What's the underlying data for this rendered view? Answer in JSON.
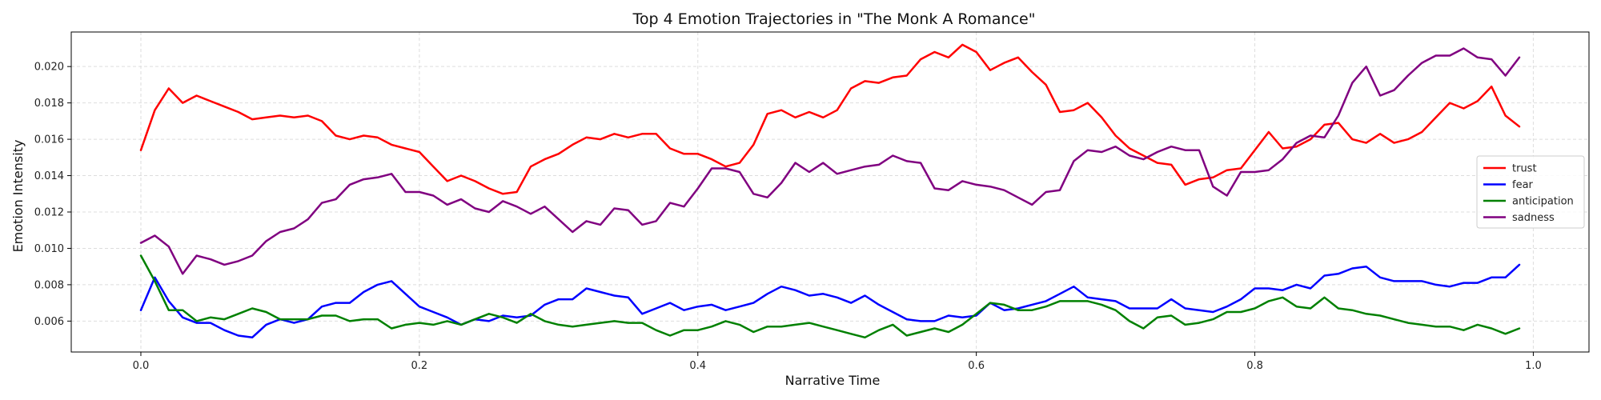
{
  "chart_data": {
    "type": "line",
    "title": "Top 4 Emotion Trajectories in \"The Monk A Romance\"",
    "xlabel": "Narrative Time",
    "ylabel": "Emotion Intensity",
    "xlim": [
      -0.05,
      1.04
    ],
    "ylim": [
      0.0043,
      0.0219
    ],
    "xticks": [
      0.0,
      0.2,
      0.4,
      0.6,
      0.8,
      1.0
    ],
    "xtick_labels": [
      "0.0",
      "0.2",
      "0.4",
      "0.6",
      "0.8",
      "1.0"
    ],
    "yticks": [
      0.006,
      0.008,
      0.01,
      0.012,
      0.014,
      0.016,
      0.018,
      0.02
    ],
    "ytick_labels": [
      "0.006",
      "0.008",
      "0.010",
      "0.012",
      "0.014",
      "0.016",
      "0.018",
      "0.020"
    ],
    "grid": true,
    "legend_position": "center-right",
    "x": [
      0.0,
      0.01,
      0.02,
      0.03,
      0.04,
      0.05,
      0.06,
      0.07,
      0.08,
      0.09,
      0.1,
      0.11,
      0.12,
      0.13,
      0.14,
      0.15,
      0.16,
      0.17,
      0.18,
      0.19,
      0.2,
      0.21,
      0.22,
      0.23,
      0.24,
      0.25,
      0.26,
      0.27,
      0.28,
      0.29,
      0.3,
      0.31,
      0.32,
      0.33,
      0.34,
      0.35,
      0.36,
      0.37,
      0.38,
      0.39,
      0.4,
      0.41,
      0.42,
      0.43,
      0.44,
      0.45,
      0.46,
      0.47,
      0.48,
      0.49,
      0.5,
      0.51,
      0.52,
      0.53,
      0.54,
      0.55,
      0.56,
      0.57,
      0.58,
      0.59,
      0.6,
      0.61,
      0.62,
      0.63,
      0.64,
      0.65,
      0.66,
      0.67,
      0.68,
      0.69,
      0.7,
      0.71,
      0.72,
      0.73,
      0.74,
      0.75,
      0.76,
      0.77,
      0.78,
      0.79,
      0.8,
      0.81,
      0.82,
      0.83,
      0.84,
      0.85,
      0.86,
      0.87,
      0.88,
      0.89,
      0.9,
      0.91,
      0.92,
      0.93,
      0.94,
      0.95,
      0.96,
      0.97,
      0.98,
      0.99
    ],
    "series": [
      {
        "name": "trust",
        "color": "#ff0000",
        "values": [
          0.0154,
          0.0176,
          0.0188,
          0.018,
          0.0184,
          0.0181,
          0.0178,
          0.0175,
          0.0171,
          0.0172,
          0.0173,
          0.0172,
          0.0173,
          0.017,
          0.0162,
          0.016,
          0.0162,
          0.0161,
          0.0157,
          0.0155,
          0.0153,
          0.0145,
          0.0137,
          0.014,
          0.0137,
          0.0133,
          0.013,
          0.0131,
          0.0145,
          0.0149,
          0.0152,
          0.0157,
          0.0161,
          0.016,
          0.0163,
          0.0161,
          0.0163,
          0.0163,
          0.0155,
          0.0152,
          0.0152,
          0.0149,
          0.0145,
          0.0147,
          0.0157,
          0.0174,
          0.0176,
          0.0172,
          0.0175,
          0.0172,
          0.0176,
          0.0188,
          0.0192,
          0.0191,
          0.0194,
          0.0195,
          0.0204,
          0.0208,
          0.0205,
          0.0212,
          0.0208,
          0.0198,
          0.0202,
          0.0205,
          0.0197,
          0.019,
          0.0175,
          0.0176,
          0.018,
          0.0172,
          0.0162,
          0.0155,
          0.0151,
          0.0147,
          0.0146,
          0.0135,
          0.0138,
          0.0139,
          0.0143,
          0.0144,
          0.0154,
          0.0164,
          0.0155,
          0.0156,
          0.016,
          0.0168,
          0.0169,
          0.016,
          0.0158,
          0.0163,
          0.0158,
          0.016,
          0.0164,
          0.0172,
          0.018,
          0.0177,
          0.0181,
          0.0189,
          0.0173,
          0.0167
        ]
      },
      {
        "name": "fear",
        "color": "#0000ff",
        "values": [
          0.0066,
          0.0084,
          0.0071,
          0.0062,
          0.0059,
          0.0059,
          0.0055,
          0.0052,
          0.0051,
          0.0058,
          0.0061,
          0.0059,
          0.0061,
          0.0068,
          0.007,
          0.007,
          0.0076,
          0.008,
          0.0082,
          0.0075,
          0.0068,
          0.0065,
          0.0062,
          0.0058,
          0.0061,
          0.006,
          0.0063,
          0.0062,
          0.0063,
          0.0069,
          0.0072,
          0.0072,
          0.0078,
          0.0076,
          0.0074,
          0.0073,
          0.0064,
          0.0067,
          0.007,
          0.0066,
          0.0068,
          0.0069,
          0.0066,
          0.0068,
          0.007,
          0.0075,
          0.0079,
          0.0077,
          0.0074,
          0.0075,
          0.0073,
          0.007,
          0.0074,
          0.0069,
          0.0065,
          0.0061,
          0.006,
          0.006,
          0.0063,
          0.0062,
          0.0063,
          0.007,
          0.0066,
          0.0067,
          0.0069,
          0.0071,
          0.0075,
          0.0079,
          0.0073,
          0.0072,
          0.0071,
          0.0067,
          0.0067,
          0.0067,
          0.0072,
          0.0067,
          0.0066,
          0.0065,
          0.0068,
          0.0072,
          0.0078,
          0.0078,
          0.0077,
          0.008,
          0.0078,
          0.0085,
          0.0086,
          0.0089,
          0.009,
          0.0084,
          0.0082,
          0.0082,
          0.0082,
          0.008,
          0.0079,
          0.0081,
          0.0081,
          0.0084,
          0.0084,
          0.0091
        ]
      },
      {
        "name": "anticipation",
        "color": "#008000",
        "values": [
          0.0096,
          0.0082,
          0.0066,
          0.0066,
          0.006,
          0.0062,
          0.0061,
          0.0064,
          0.0067,
          0.0065,
          0.0061,
          0.0061,
          0.0061,
          0.0063,
          0.0063,
          0.006,
          0.0061,
          0.0061,
          0.0056,
          0.0058,
          0.0059,
          0.0058,
          0.006,
          0.0058,
          0.0061,
          0.0064,
          0.0062,
          0.0059,
          0.0064,
          0.006,
          0.0058,
          0.0057,
          0.0058,
          0.0059,
          0.006,
          0.0059,
          0.0059,
          0.0055,
          0.0052,
          0.0055,
          0.0055,
          0.0057,
          0.006,
          0.0058,
          0.0054,
          0.0057,
          0.0057,
          0.0058,
          0.0059,
          0.0057,
          0.0055,
          0.0053,
          0.0051,
          0.0055,
          0.0058,
          0.0052,
          0.0054,
          0.0056,
          0.0054,
          0.0058,
          0.0064,
          0.007,
          0.0069,
          0.0066,
          0.0066,
          0.0068,
          0.0071,
          0.0071,
          0.0071,
          0.0069,
          0.0066,
          0.006,
          0.0056,
          0.0062,
          0.0063,
          0.0058,
          0.0059,
          0.0061,
          0.0065,
          0.0065,
          0.0067,
          0.0071,
          0.0073,
          0.0068,
          0.0067,
          0.0073,
          0.0067,
          0.0066,
          0.0064,
          0.0063,
          0.0061,
          0.0059,
          0.0058,
          0.0057,
          0.0057,
          0.0055,
          0.0058,
          0.0056,
          0.0053,
          0.0056
        ]
      },
      {
        "name": "sadness",
        "color": "#800080",
        "values": [
          0.0103,
          0.0107,
          0.0101,
          0.0086,
          0.0096,
          0.0094,
          0.0091,
          0.0093,
          0.0096,
          0.0104,
          0.0109,
          0.0111,
          0.0116,
          0.0125,
          0.0127,
          0.0135,
          0.0138,
          0.0139,
          0.0141,
          0.0131,
          0.0131,
          0.0129,
          0.0124,
          0.0127,
          0.0122,
          0.012,
          0.0126,
          0.0123,
          0.0119,
          0.0123,
          0.0116,
          0.0109,
          0.0115,
          0.0113,
          0.0122,
          0.0121,
          0.0113,
          0.0115,
          0.0125,
          0.0123,
          0.0133,
          0.0144,
          0.0144,
          0.0142,
          0.013,
          0.0128,
          0.0136,
          0.0147,
          0.0142,
          0.0147,
          0.0141,
          0.0143,
          0.0145,
          0.0146,
          0.0151,
          0.0148,
          0.0147,
          0.0133,
          0.0132,
          0.0137,
          0.0135,
          0.0134,
          0.0132,
          0.0128,
          0.0124,
          0.0131,
          0.0132,
          0.0148,
          0.0154,
          0.0153,
          0.0156,
          0.0151,
          0.0149,
          0.0153,
          0.0156,
          0.0154,
          0.0154,
          0.0134,
          0.0129,
          0.0142,
          0.0142,
          0.0143,
          0.0149,
          0.0158,
          0.0162,
          0.0161,
          0.0173,
          0.0191,
          0.02,
          0.0184,
          0.0187,
          0.0195,
          0.0202,
          0.0206,
          0.0206,
          0.021,
          0.0205,
          0.0204,
          0.0195,
          0.0205
        ]
      }
    ]
  }
}
